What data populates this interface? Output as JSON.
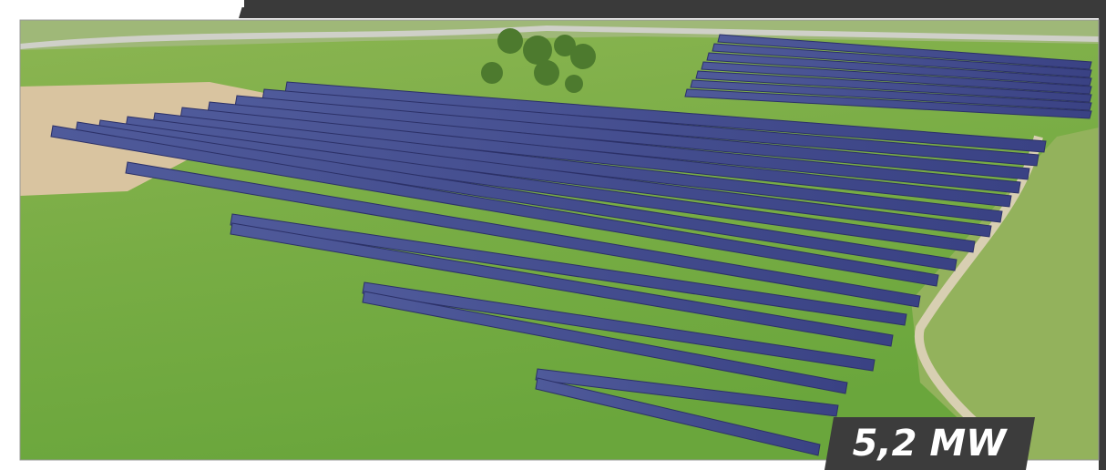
{
  "badge": {
    "label": "5,2 MW"
  }
}
